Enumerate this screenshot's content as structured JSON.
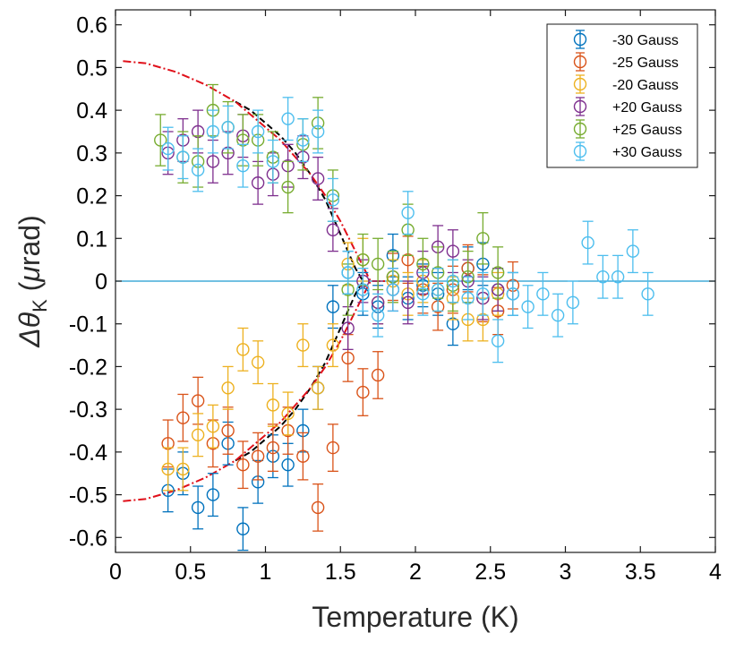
{
  "chart_data": {
    "type": "scatter",
    "xlabel": "Temperature (K)",
    "ylabel_parts": [
      "Δθ",
      "K",
      " (",
      "μ",
      "rad)"
    ],
    "xlim": [
      0,
      4
    ],
    "ylim": [
      -0.635,
      0.635
    ],
    "xticks": [
      0,
      0.5,
      1,
      1.5,
      2,
      2.5,
      3,
      3.5,
      4
    ],
    "xtick_labels": [
      "0",
      "0.5",
      "1",
      "1.5",
      "2",
      "2.5",
      "3",
      "3.5",
      "4"
    ],
    "yticks": [
      0.6,
      0.5,
      0.4,
      0.3,
      0.2,
      0.1,
      0,
      -0.1,
      -0.2,
      -0.3,
      -0.4,
      -0.5,
      -0.6
    ],
    "ytick_labels": [
      "0.6",
      "0.5",
      "0.4",
      "0.3",
      "0.2",
      "0.1",
      "0",
      "-0.1",
      "-0.2",
      "-0.3",
      "-0.4",
      "-0.5",
      "-0.6"
    ],
    "zero_line_color": "#1f9bd1",
    "grid": false,
    "legend_position": "top-right",
    "series": [
      {
        "name": "-30 Gauss",
        "color": "#0072bd",
        "err": 0.05,
        "points": [
          [
            0.35,
            -0.49
          ],
          [
            0.45,
            -0.45
          ],
          [
            0.55,
            -0.53
          ],
          [
            0.65,
            -0.5
          ],
          [
            0.75,
            -0.38
          ],
          [
            0.85,
            -0.58
          ],
          [
            0.95,
            -0.47
          ],
          [
            1.05,
            -0.41
          ],
          [
            1.15,
            -0.43
          ],
          [
            1.25,
            -0.35
          ],
          [
            1.35,
            -0.25
          ],
          [
            1.45,
            -0.06
          ],
          [
            1.55,
            0.02
          ],
          [
            1.65,
            -0.03
          ],
          [
            1.75,
            -0.06
          ],
          [
            1.85,
            0.06
          ],
          [
            1.95,
            -0.04
          ],
          [
            2.05,
            -0.01
          ],
          [
            2.15,
            -0.03
          ],
          [
            2.25,
            -0.1
          ],
          [
            2.35,
            0.03
          ],
          [
            2.45,
            0.04
          ],
          [
            2.55,
            -0.02
          ],
          [
            2.65,
            -0.03
          ]
        ]
      },
      {
        "name": "-25 Gauss",
        "color": "#d95319",
        "err": 0.055,
        "points": [
          [
            0.35,
            -0.38
          ],
          [
            0.45,
            -0.32
          ],
          [
            0.55,
            -0.28
          ],
          [
            0.65,
            -0.38
          ],
          [
            0.75,
            -0.35
          ],
          [
            0.85,
            -0.43
          ],
          [
            0.95,
            -0.41
          ],
          [
            1.05,
            -0.39
          ],
          [
            1.15,
            -0.35
          ],
          [
            1.25,
            -0.41
          ],
          [
            1.35,
            -0.53
          ],
          [
            1.45,
            -0.39
          ],
          [
            1.55,
            -0.18
          ],
          [
            1.65,
            -0.26
          ],
          [
            1.75,
            -0.22
          ],
          [
            1.85,
            0.01
          ],
          [
            1.95,
            0.05
          ],
          [
            2.05,
            -0.02
          ],
          [
            2.15,
            -0.06
          ],
          [
            2.25,
            -0.02
          ],
          [
            2.35,
            0.03
          ],
          [
            2.45,
            -0.04
          ],
          [
            2.55,
            -0.07
          ],
          [
            2.65,
            -0.01
          ]
        ]
      },
      {
        "name": "-20 Gauss",
        "color": "#edb120",
        "err": 0.05,
        "points": [
          [
            0.35,
            -0.44
          ],
          [
            0.45,
            -0.44
          ],
          [
            0.55,
            -0.36
          ],
          [
            0.65,
            -0.34
          ],
          [
            0.75,
            -0.25
          ],
          [
            0.85,
            -0.16
          ],
          [
            0.95,
            -0.19
          ],
          [
            1.05,
            -0.29
          ],
          [
            1.15,
            -0.31
          ],
          [
            1.25,
            -0.15
          ],
          [
            1.35,
            -0.25
          ],
          [
            1.45,
            -0.15
          ],
          [
            1.55,
            0.04
          ],
          [
            1.65,
            0.05
          ],
          [
            1.75,
            -0.05
          ],
          [
            1.85,
            0.0
          ],
          [
            1.95,
            -0.03
          ],
          [
            2.05,
            0.0
          ],
          [
            2.15,
            -0.02
          ],
          [
            2.25,
            -0.04
          ],
          [
            2.35,
            -0.09
          ],
          [
            2.45,
            -0.09
          ],
          [
            2.55,
            -0.03
          ]
        ]
      },
      {
        "name": "+20 Gauss",
        "color": "#7e2f8e",
        "err": 0.05,
        "points": [
          [
            0.35,
            0.3
          ],
          [
            0.45,
            0.33
          ],
          [
            0.55,
            0.35
          ],
          [
            0.65,
            0.28
          ],
          [
            0.75,
            0.3
          ],
          [
            0.85,
            0.34
          ],
          [
            0.95,
            0.23
          ],
          [
            1.05,
            0.25
          ],
          [
            1.15,
            0.27
          ],
          [
            1.25,
            0.29
          ],
          [
            1.35,
            0.24
          ],
          [
            1.45,
            0.12
          ],
          [
            1.55,
            -0.11
          ],
          [
            1.65,
            0.0
          ],
          [
            1.75,
            -0.05
          ],
          [
            1.85,
            -0.02
          ],
          [
            1.95,
            -0.05
          ],
          [
            2.05,
            0.02
          ],
          [
            2.15,
            0.08
          ],
          [
            2.25,
            0.07
          ],
          [
            2.35,
            0.0
          ],
          [
            2.45,
            -0.04
          ],
          [
            2.55,
            -0.02
          ]
        ]
      },
      {
        "name": "+25 Gauss",
        "color": "#77ac30",
        "err": 0.06,
        "points": [
          [
            0.3,
            0.33
          ],
          [
            0.45,
            0.29
          ],
          [
            0.55,
            0.28
          ],
          [
            0.65,
            0.4
          ],
          [
            0.75,
            0.36
          ],
          [
            0.85,
            0.33
          ],
          [
            0.95,
            0.33
          ],
          [
            1.05,
            0.29
          ],
          [
            1.15,
            0.22
          ],
          [
            1.25,
            0.32
          ],
          [
            1.35,
            0.37
          ],
          [
            1.45,
            0.2
          ],
          [
            1.55,
            -0.02
          ],
          [
            1.65,
            0.05
          ],
          [
            1.75,
            0.04
          ],
          [
            1.85,
            0.01
          ],
          [
            1.95,
            0.12
          ],
          [
            2.05,
            0.04
          ],
          [
            2.15,
            0.02
          ],
          [
            2.25,
            -0.01
          ],
          [
            2.35,
            0.01
          ],
          [
            2.45,
            0.1
          ],
          [
            2.55,
            0.02
          ]
        ]
      },
      {
        "name": "+30 Gauss",
        "color": "#4dbeee",
        "err": 0.05,
        "points": [
          [
            0.35,
            0.31
          ],
          [
            0.45,
            0.29
          ],
          [
            0.55,
            0.26
          ],
          [
            0.65,
            0.35
          ],
          [
            0.75,
            0.36
          ],
          [
            0.85,
            0.27
          ],
          [
            0.95,
            0.35
          ],
          [
            1.05,
            0.28
          ],
          [
            1.15,
            0.38
          ],
          [
            1.25,
            0.33
          ],
          [
            1.35,
            0.35
          ],
          [
            1.45,
            0.19
          ],
          [
            1.55,
            0.02
          ],
          [
            1.65,
            -0.02
          ],
          [
            1.75,
            -0.08
          ],
          [
            1.85,
            -0.02
          ],
          [
            1.95,
            0.16
          ],
          [
            2.05,
            -0.03
          ],
          [
            2.15,
            -0.02
          ],
          [
            2.25,
            0.0
          ],
          [
            2.35,
            -0.04
          ],
          [
            2.45,
            -0.03
          ],
          [
            2.55,
            -0.14
          ],
          [
            2.65,
            -0.03
          ],
          [
            2.75,
            -0.06
          ],
          [
            2.85,
            -0.03
          ],
          [
            2.95,
            -0.08
          ],
          [
            3.05,
            -0.05
          ],
          [
            3.15,
            0.09
          ],
          [
            3.25,
            0.01
          ],
          [
            3.35,
            0.01
          ],
          [
            3.45,
            0.07
          ],
          [
            3.55,
            -0.03
          ]
        ]
      }
    ],
    "fits": [
      {
        "name": "black-dashed-fit-upper",
        "color": "#000000",
        "style": "dashed",
        "x": [
          0.8,
          0.9,
          1.0,
          1.1,
          1.2,
          1.3,
          1.4,
          1.45,
          1.5,
          1.55,
          1.6,
          1.65
        ],
        "y": [
          0.42,
          0.4,
          0.37,
          0.34,
          0.3,
          0.25,
          0.19,
          0.15,
          0.11,
          0.07,
          0.03,
          0.0
        ]
      },
      {
        "name": "black-dashed-fit-lower",
        "color": "#000000",
        "style": "dashed",
        "x": [
          0.8,
          0.9,
          1.0,
          1.1,
          1.2,
          1.3,
          1.4,
          1.45,
          1.5,
          1.55,
          1.6,
          1.65
        ],
        "y": [
          -0.42,
          -0.4,
          -0.37,
          -0.34,
          -0.3,
          -0.25,
          -0.19,
          -0.15,
          -0.11,
          -0.07,
          -0.03,
          0.0
        ]
      },
      {
        "name": "red-dash-dot-fit-upper",
        "color": "#e0101a",
        "style": "dashdot",
        "x": [
          0.05,
          0.2,
          0.4,
          0.6,
          0.8,
          1.0,
          1.1,
          1.2,
          1.3,
          1.4,
          1.5,
          1.6,
          1.7,
          1.8
        ],
        "y": [
          0.515,
          0.51,
          0.49,
          0.46,
          0.42,
          0.36,
          0.33,
          0.29,
          0.25,
          0.2,
          0.14,
          0.07,
          0.0,
          0.0
        ]
      },
      {
        "name": "red-dash-dot-fit-lower",
        "color": "#e0101a",
        "style": "dashdot",
        "x": [
          0.05,
          0.2,
          0.4,
          0.6,
          0.8,
          1.0,
          1.1,
          1.2,
          1.3,
          1.4,
          1.5,
          1.6,
          1.7,
          1.8
        ],
        "y": [
          -0.515,
          -0.51,
          -0.49,
          -0.46,
          -0.42,
          -0.36,
          -0.33,
          -0.29,
          -0.25,
          -0.2,
          -0.14,
          -0.07,
          0.0,
          0.0
        ]
      }
    ]
  }
}
